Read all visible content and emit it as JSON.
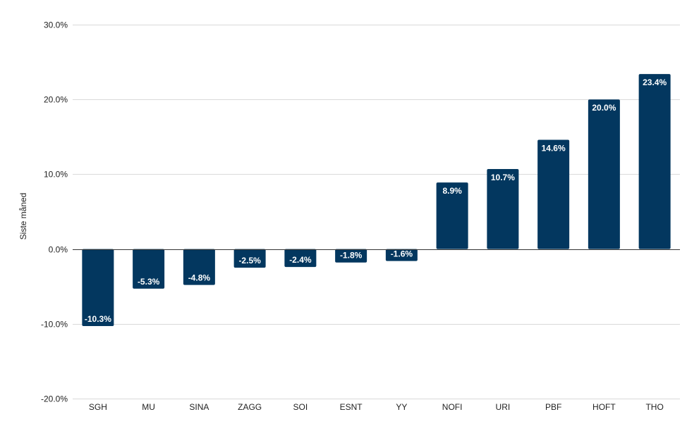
{
  "chart_data": {
    "type": "bar",
    "ylabel": "Siste måned",
    "ylim": [
      -20,
      30
    ],
    "ytick_values": [
      -20,
      -10,
      0,
      10,
      20,
      30
    ],
    "ytick_labels": [
      "-20.0%",
      "-10.0%",
      "0.0%",
      "10.0%",
      "20.0%",
      "30.0%"
    ],
    "categories": [
      "SGH",
      "MU",
      "SINA",
      "ZAGG",
      "SOI",
      "ESNT",
      "YY",
      "NOFI",
      "URI",
      "PBF",
      "HOFT",
      "THO"
    ],
    "values": [
      -10.3,
      -5.3,
      -4.8,
      -2.5,
      -2.4,
      -1.8,
      -1.6,
      8.9,
      10.7,
      14.6,
      20.0,
      23.4
    ],
    "data_labels": [
      "-10.3%",
      "-5.3%",
      "-4.8%",
      "-2.5%",
      "-2.4%",
      "-1.8%",
      "-1.6%",
      "8.9%",
      "10.7%",
      "14.6%",
      "20.0%",
      "23.4%"
    ],
    "grid": true,
    "legend": "none",
    "bar_color": "#03375f",
    "grid_color": "#d9d9d9",
    "zero_line_color": "#333333"
  }
}
